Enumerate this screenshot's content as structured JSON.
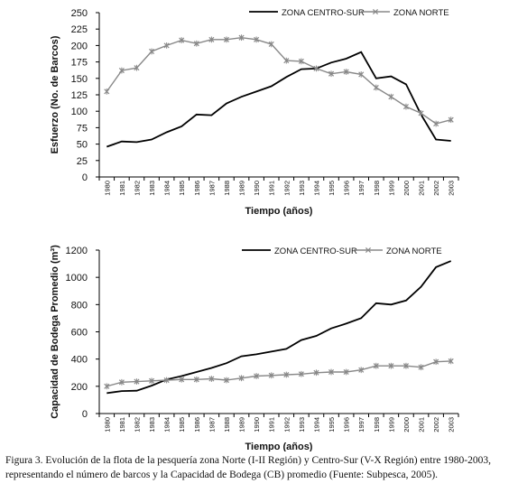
{
  "caption": "Figura 3. Evolución de la flota de la pesquería zona Norte (I-II Región) y Centro-Sur (V-X Región) entre 1980-2003, representando el número de barcos y la Capacidad de Bodega (CB) promedio (Fuente: Subpesca, 2005).",
  "chart_data": [
    {
      "type": "line",
      "title": "",
      "xlabel": "Tiempo (años)",
      "ylabel": "Esfuerzo (No. de Barcos)",
      "ylim": [
        0,
        250
      ],
      "yticks": [
        0,
        25,
        50,
        75,
        100,
        125,
        150,
        175,
        200,
        225,
        250
      ],
      "grid": false,
      "legend": "top-right",
      "categories": [
        "1980",
        "1981",
        "1982",
        "1983",
        "1984",
        "1985",
        "1986",
        "1987",
        "1988",
        "1989",
        "1990",
        "1991",
        "1992",
        "1993",
        "1994",
        "1995",
        "1996",
        "1997",
        "1998",
        "1999",
        "2000",
        "2001",
        "2002",
        "2003"
      ],
      "series": [
        {
          "name": "ZONA CENTRO-SUR",
          "color": "#000000",
          "marker": "none",
          "values": [
            46,
            54,
            53,
            57,
            68,
            77,
            95,
            94,
            112,
            122,
            130,
            138,
            152,
            164,
            165,
            174,
            180,
            190,
            150,
            153,
            141,
            95,
            57,
            55
          ]
        },
        {
          "name": "ZONA NORTE",
          "color": "#888888",
          "marker": "x",
          "values": [
            130,
            162,
            166,
            191,
            200,
            208,
            203,
            209,
            209,
            212,
            209,
            202,
            177,
            176,
            165,
            157,
            160,
            156,
            136,
            122,
            107,
            97,
            81,
            87
          ]
        }
      ]
    },
    {
      "type": "line",
      "title": "",
      "xlabel": "Tiempo (años)",
      "ylabel": "Capacidad de Bodega Promedio (m³)",
      "ylim": [
        0,
        1200
      ],
      "yticks": [
        0,
        200,
        400,
        600,
        800,
        1000,
        1200
      ],
      "grid": false,
      "legend": "top-right",
      "categories": [
        "1980",
        "1981",
        "1982",
        "1983",
        "1984",
        "1985",
        "1986",
        "1987",
        "1988",
        "1989",
        "1990",
        "1991",
        "1992",
        "1993",
        "1994",
        "1995",
        "1996",
        "1997",
        "1998",
        "1999",
        "2000",
        "2001",
        "2002",
        "2003"
      ],
      "series": [
        {
          "name": "ZONA CENTRO-SUR",
          "color": "#000000",
          "marker": "none",
          "values": [
            150,
            165,
            168,
            205,
            250,
            275,
            305,
            335,
            370,
            420,
            435,
            455,
            475,
            540,
            570,
            625,
            660,
            700,
            810,
            800,
            830,
            930,
            1075,
            1120
          ]
        },
        {
          "name": "ZONA NORTE",
          "color": "#888888",
          "marker": "x",
          "values": [
            200,
            230,
            235,
            240,
            245,
            250,
            250,
            255,
            245,
            260,
            275,
            280,
            285,
            290,
            300,
            305,
            305,
            320,
            350,
            350,
            350,
            340,
            380,
            385
          ]
        }
      ]
    }
  ]
}
